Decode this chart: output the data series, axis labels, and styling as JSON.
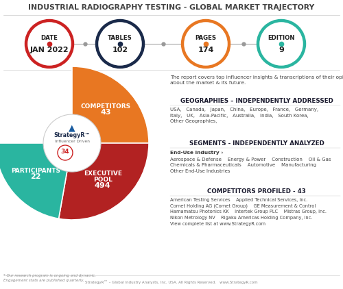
{
  "title": "INDUSTRIAL RADIOGRAPHY TESTING - GLOBAL MARKET TRAJECTORY",
  "bg_color": "#ffffff",
  "top_circles": [
    {
      "label1": "DATE",
      "label2": "JAN 2022",
      "color": "#cc2222"
    },
    {
      "label1": "TABLES",
      "label2": "102",
      "color": "#1a2a4a"
    },
    {
      "label1": "PAGES",
      "label2": "174",
      "color": "#e87722"
    },
    {
      "label1": "EDITION",
      "label2": "9",
      "color": "#2ab5a0"
    }
  ],
  "pie_segments": [
    {
      "label": "COMPETITORS\n43",
      "value": 90,
      "color": "#e87722"
    },
    {
      "label": "EXECUTIVE\nPOOL\n494",
      "value": 100,
      "color": "#b22222"
    },
    {
      "label": "PARTICIPANTS\n22",
      "value": 80,
      "color": "#2ab5a0"
    }
  ],
  "right_text": {
    "intro": "The report covers top influencer insights & transcriptions of their opinions\nabout the market & its future.",
    "geo_title": "GEOGRAPHIES – INDEPENDENTLY ADDRESSED",
    "geo_body": "USA,   Canada,   Japan,   China,   Europe,   France,   Germany,\nItaly,   UK,   Asia-Pacific,   Australia,   India,   South Korea,\nOther Geographies,",
    "seg_title": "SEGMENTS - INDEPENDENTLY ANALYZED",
    "seg_sub": "End-Use Industry ›",
    "seg_body": "Aerospace & Defense    Energy & Power    Construction    Oil & Gas\nChemicals & Pharmaceuticals    Automotive    Manufacturing\nOther End-Use Industries",
    "comp_title": "COMPETITORS PROFILED - 43",
    "comp_body": "American Testing Services    Applied Technical Services, Inc.\nComet Holding AG (Comet Group)    GE Measurement & Control\nHamamatsu Photonics KK    Intertek Group PLC    Mistras Group, Inc.\nNikon Metrology NV    Rigaku Americas Holding Company, Inc.\nView complete list at www.StrategyR.com"
  },
  "footer_note": "* Our research program is ongoing and dynamic.\nEngagement stats are published quarterly.",
  "footer_brand": "StrategyR™ – Global Industry Analysts, Inc. USA. All Rights Reserved.   www.StrategyR.com"
}
